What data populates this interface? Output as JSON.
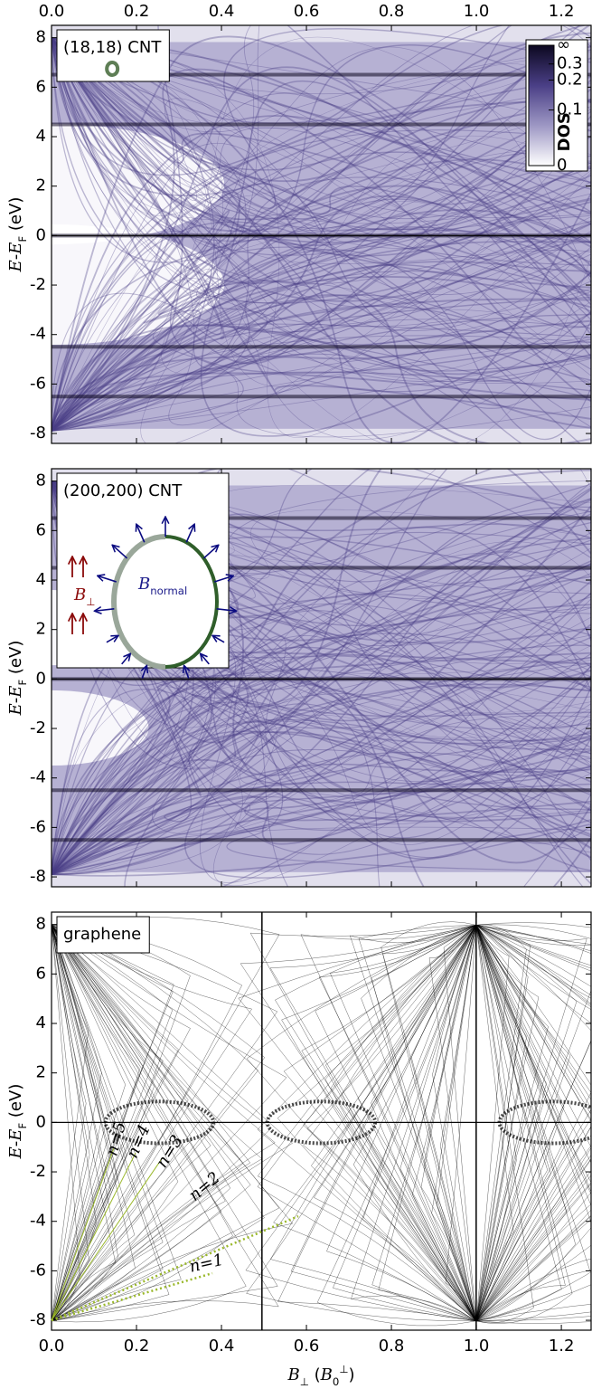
{
  "chart_data": [
    {
      "type": "heatmap",
      "annotation": "(18,18) CNT",
      "xlim": [
        0,
        1.27
      ],
      "ylim": [
        -8.4,
        8.5
      ],
      "xticks": [
        {
          "value": 0,
          "label": "0.0"
        },
        {
          "value": 0.2,
          "label": "0.2"
        },
        {
          "value": 0.4,
          "label": "0.4"
        },
        {
          "value": 0.6,
          "label": "0.6"
        },
        {
          "value": 0.8,
          "label": "0.8"
        },
        {
          "value": 1.0,
          "label": "1.0"
        },
        {
          "value": 1.2,
          "label": "1.2"
        }
      ],
      "xtick_labels": "top",
      "yticks": [
        8,
        6,
        4,
        2,
        0,
        -2,
        -4,
        -6,
        -8
      ],
      "ylabel": [
        {
          "text": "E"
        },
        {
          "text": "-"
        },
        {
          "text": "E"
        },
        {
          "text": "F",
          "shift": "sub"
        },
        {
          "text": " (eV)"
        }
      ],
      "colormap": [
        "#ffffff",
        "#9d97c4",
        "#4a3f86",
        "#0c0820"
      ],
      "colorbar": {
        "label": "DOS",
        "ticks": [
          {
            "value": null,
            "label": "∞"
          },
          {
            "value": 0.3,
            "label": "0.3"
          },
          {
            "value": 0.2,
            "label": "0.2"
          },
          {
            "value": 0.1,
            "label": "0.1"
          },
          0
        ]
      }
    },
    {
      "type": "heatmap",
      "annotation": "(200,200) CNT",
      "xlim": [
        0,
        1.27
      ],
      "ylim": [
        -8.4,
        8.5
      ],
      "xticks": [
        {
          "value": 0,
          "label": "0.0"
        },
        {
          "value": 0.2,
          "label": "0.2"
        },
        {
          "value": 0.4,
          "label": "0.4"
        },
        {
          "value": 0.6,
          "label": "0.6"
        },
        {
          "value": 0.8,
          "label": "0.8"
        },
        {
          "value": 1.0,
          "label": "1.0"
        },
        {
          "value": 1.2,
          "label": "1.2"
        }
      ],
      "xtick_labels": "none",
      "yticks": [
        8,
        6,
        4,
        2,
        0,
        -2,
        -4,
        -6,
        -8
      ],
      "ylabel": [
        {
          "text": "E"
        },
        {
          "text": "-"
        },
        {
          "text": "E"
        },
        {
          "text": "F",
          "shift": "sub"
        },
        {
          "text": " (eV)"
        }
      ],
      "colormap": [
        "#ffffff",
        "#9d97c4",
        "#4a3f86",
        "#0c0820"
      ],
      "inset": {
        "field_label": [
          {
            "text": "B"
          },
          {
            "text": "⊥",
            "shift": "sub"
          }
        ],
        "normal_label": [
          {
            "text": "B"
          },
          {
            "text": "normal",
            "shift": "sub"
          }
        ]
      }
    },
    {
      "type": "heatmap",
      "annotation": "graphene",
      "xlim": [
        0,
        1.27
      ],
      "ylim": [
        -8.4,
        8.5
      ],
      "xticks": [
        {
          "value": 0,
          "label": "0.0"
        },
        {
          "value": 0.2,
          "label": "0.2"
        },
        {
          "value": 0.4,
          "label": "0.4"
        },
        {
          "value": 0.6,
          "label": "0.6"
        },
        {
          "value": 0.8,
          "label": "0.8"
        },
        {
          "value": 1.0,
          "label": "1.0"
        },
        {
          "value": 1.2,
          "label": "1.2"
        }
      ],
      "xtick_labels": "bottom",
      "yticks": [
        8,
        6,
        4,
        2,
        0,
        -2,
        -4,
        -6,
        -8
      ],
      "ylabel": [
        {
          "text": "E"
        },
        {
          "text": "-"
        },
        {
          "text": "E"
        },
        {
          "text": "F",
          "shift": "sub"
        },
        {
          "text": " (eV)"
        }
      ],
      "xlabel": [
        {
          "text": "B"
        },
        {
          "text": "⊥",
          "shift": "sub"
        },
        {
          "text": " ("
        },
        {
          "text": "B"
        },
        {
          "text": "0",
          "shift": "sub"
        },
        {
          "text": "⊥",
          "shift": "super"
        },
        {
          "text": ")"
        }
      ],
      "colormap": [
        "#ffffff",
        "#888888",
        "#000000"
      ],
      "level_labels": [
        "n=1",
        "n=2",
        "n=3",
        "n=4",
        "n=5"
      ],
      "level_color": "#9ab82a"
    }
  ]
}
